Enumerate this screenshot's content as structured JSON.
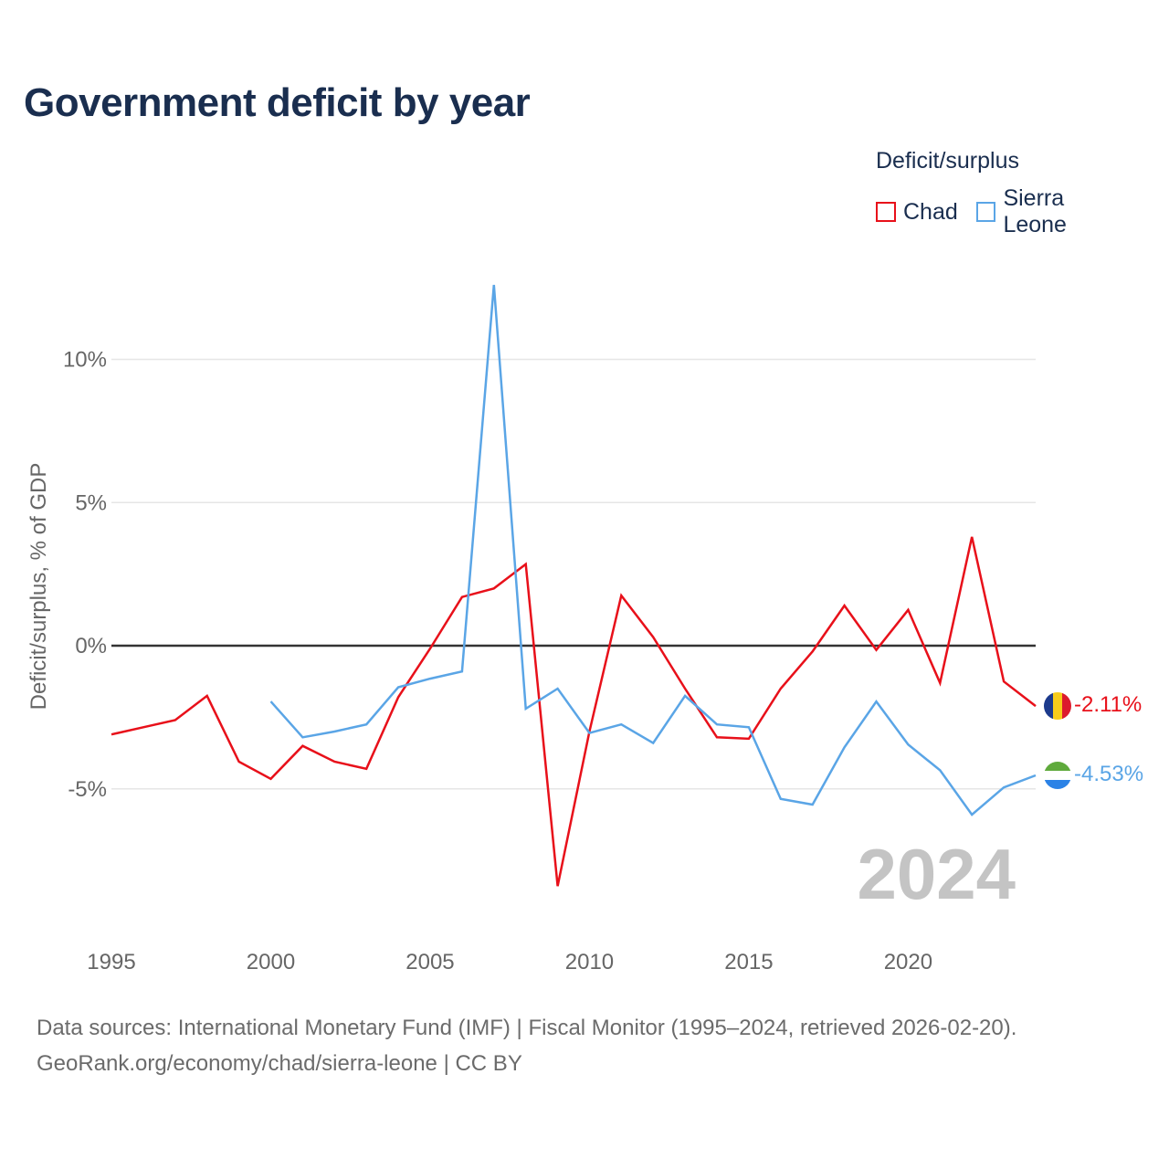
{
  "header": {
    "title": "Government deficit by year"
  },
  "legend": {
    "title": "Deficit/surplus",
    "items": [
      {
        "label": "Chad",
        "color": "#e8101a"
      },
      {
        "label": "Sierra Leone",
        "color": "#5aa5e6"
      }
    ]
  },
  "chart_data": {
    "type": "line",
    "title": "Government deficit by year",
    "xlabel": "",
    "ylabel": "Deficit/surplus, % of GDP",
    "xlim": [
      1995,
      2024
    ],
    "ylim": [
      -9.5,
      12.5
    ],
    "x_ticks": [
      1995,
      2000,
      2005,
      2010,
      2015,
      2020
    ],
    "y_ticks": [
      {
        "value": 10,
        "label": "10%"
      },
      {
        "value": 5,
        "label": "5%"
      },
      {
        "value": 0,
        "label": "0%"
      },
      {
        "value": -5,
        "label": "-5%"
      }
    ],
    "year_watermark": "2024",
    "series": [
      {
        "name": "Chad",
        "color": "#e8101a",
        "x": [
          1995,
          1996,
          1997,
          1998,
          1999,
          2000,
          2001,
          2002,
          2003,
          2004,
          2005,
          2006,
          2007,
          2008,
          2009,
          2010,
          2011,
          2012,
          2013,
          2014,
          2015,
          2016,
          2017,
          2018,
          2019,
          2020,
          2021,
          2022,
          2023,
          2024
        ],
        "values": [
          -3.1,
          -2.85,
          -2.6,
          -1.75,
          -4.05,
          -4.65,
          -3.5,
          -4.05,
          -4.3,
          -1.8,
          -0.1,
          1.7,
          2.0,
          2.85,
          -8.4,
          -3.0,
          1.75,
          0.3,
          -1.5,
          -3.2,
          -3.25,
          -1.5,
          -0.2,
          1.4,
          -0.15,
          1.25,
          -1.3,
          3.8,
          -1.25,
          -2.11
        ],
        "end_label": "-2.11%"
      },
      {
        "name": "Sierra Leone",
        "color": "#5aa5e6",
        "x": [
          2000,
          2001,
          2002,
          2003,
          2004,
          2005,
          2006,
          2007,
          2008,
          2009,
          2010,
          2011,
          2012,
          2013,
          2014,
          2015,
          2016,
          2017,
          2018,
          2019,
          2020,
          2021,
          2022,
          2023,
          2024
        ],
        "values": [
          -1.95,
          -3.2,
          -3.0,
          -2.75,
          -1.45,
          -1.15,
          -0.9,
          12.6,
          -2.2,
          -1.5,
          -3.05,
          -2.75,
          -3.4,
          -1.75,
          -2.75,
          -2.85,
          -5.35,
          -5.55,
          -3.55,
          -1.95,
          -3.45,
          -4.35,
          -5.9,
          -4.95,
          -4.53
        ],
        "end_label": "-4.53%"
      }
    ]
  },
  "footer": {
    "sources": "Data sources: International Monetary Fund (IMF) | Fiscal Monitor (1995–2024, retrieved 2026-02-20).",
    "attribution": "GeoRank.org/economy/chad/sierra-leone | CC BY"
  }
}
